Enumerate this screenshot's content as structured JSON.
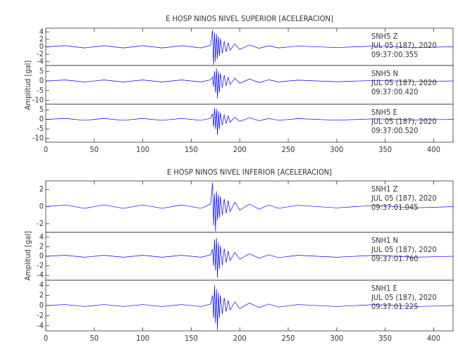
{
  "chart_data": [
    {
      "type": "line",
      "title": "E HOSP NINOS NIVEL SUPERIOR [ACELERACION]",
      "ylabel": "Amplitud [gal]",
      "xlim": [
        0,
        420
      ],
      "xticks": [
        0,
        50,
        100,
        150,
        200,
        250,
        300,
        350,
        400
      ],
      "x": [
        0,
        20,
        40,
        60,
        80,
        100,
        120,
        140,
        160,
        170,
        172,
        173,
        174,
        175,
        176,
        177,
        178,
        179,
        180,
        182,
        184,
        186,
        188,
        190,
        195,
        200,
        210,
        220,
        230,
        240,
        260,
        300,
        340,
        380,
        420
      ],
      "panels": [
        {
          "station": "SNH5   Z",
          "date": "JUL 05 (187), 2020",
          "time": "09:37:00.355",
          "color": "#0000ff",
          "ylim": [
            -5,
            5
          ],
          "yticks": [
            -4,
            -2,
            0,
            2,
            4
          ],
          "values": [
            0,
            0.3,
            -0.3,
            0.3,
            -0.3,
            0.3,
            -0.3,
            0.3,
            -0.3,
            0.4,
            4.5,
            -4.8,
            3.8,
            -4,
            3.5,
            -3.2,
            2.8,
            -2.5,
            2.2,
            -1.8,
            1.5,
            -1.3,
            1.1,
            -0.9,
            0.8,
            -0.7,
            0.5,
            -0.4,
            0.3,
            -0.3,
            0.2,
            -0.2,
            0.2,
            -0.2,
            0
          ]
        },
        {
          "station": "SNH5   N",
          "date": "JUL 05 (187), 2020",
          "time": "09:37:00.420",
          "color": "#0000ff",
          "ylim": [
            -12,
            8
          ],
          "yticks": [
            -10,
            -5,
            0,
            5
          ],
          "values": [
            0,
            0.5,
            -0.5,
            0.5,
            -0.5,
            0.5,
            -0.5,
            0.5,
            -0.5,
            0.6,
            2,
            -3,
            5,
            -6,
            6.5,
            -9,
            5,
            -6,
            4,
            -3.5,
            3,
            -2.5,
            2,
            -1.8,
            1.5,
            -1.2,
            1,
            -0.8,
            0.6,
            -0.5,
            0.4,
            -0.4,
            0.3,
            -0.3,
            0
          ]
        },
        {
          "station": "SNH5   E",
          "date": "JUL 05 (187), 2020",
          "time": "09:37:00.520",
          "color": "#0000ff",
          "ylim": [
            -12,
            8
          ],
          "yticks": [
            -10,
            -5,
            0,
            5
          ],
          "values": [
            0,
            0.5,
            -0.5,
            0.5,
            -0.5,
            0.5,
            -0.5,
            0.5,
            -0.5,
            0.6,
            3,
            -4,
            6,
            -5,
            5.5,
            -8,
            4.5,
            -5,
            3.5,
            -3,
            2.5,
            -2.2,
            1.8,
            -1.5,
            1.2,
            -1,
            0.8,
            -0.7,
            0.5,
            -0.5,
            0.4,
            -0.4,
            0.3,
            -0.3,
            0
          ]
        }
      ]
    },
    {
      "type": "line",
      "title": "E HOSP NINOS NIVEL INFERIOR [ACELERACION]",
      "ylabel": "Amplitud [gal]",
      "xlim": [
        0,
        420
      ],
      "xticks": [
        0,
        50,
        100,
        150,
        200,
        250,
        300,
        350,
        400
      ],
      "x": [
        0,
        20,
        40,
        60,
        80,
        100,
        120,
        140,
        160,
        170,
        172,
        173,
        174,
        175,
        176,
        177,
        178,
        179,
        180,
        182,
        184,
        186,
        188,
        190,
        195,
        200,
        210,
        220,
        230,
        240,
        260,
        300,
        340,
        380,
        420
      ],
      "panels": [
        {
          "station": "SNH1   Z",
          "date": "JUL 05 (187), 2020",
          "time": "09:37:01.045",
          "color": "#0000ff",
          "ylim": [
            -3,
            3
          ],
          "yticks": [
            -2,
            0,
            2
          ],
          "values": [
            0,
            0.2,
            -0.2,
            0.2,
            -0.2,
            0.2,
            -0.2,
            0.2,
            -0.2,
            0.3,
            2.8,
            -2.2,
            1.5,
            -2.9,
            1.8,
            -1.6,
            1.4,
            -1.3,
            1.2,
            -1,
            0.9,
            -0.8,
            0.7,
            -0.6,
            0.5,
            -0.4,
            0.3,
            -0.3,
            0.2,
            -0.2,
            0.15,
            -0.15,
            0.15,
            -0.15,
            0
          ]
        },
        {
          "station": "SNH1   N",
          "date": "JUL 05 (187), 2020",
          "time": "09:37:01.760",
          "color": "#0000ff",
          "ylim": [
            -5,
            5
          ],
          "yticks": [
            -4,
            -2,
            0,
            2,
            4
          ],
          "values": [
            0,
            0.2,
            -0.2,
            0.2,
            -0.2,
            0.2,
            -0.2,
            0.2,
            -0.2,
            0.3,
            1.5,
            -2,
            3.5,
            -3,
            3.8,
            -4.5,
            2.8,
            -2.6,
            2.2,
            -1.9,
            1.6,
            -1.3,
            1.1,
            -0.9,
            0.8,
            -0.6,
            0.5,
            -0.4,
            0.3,
            -0.3,
            0.2,
            -0.2,
            0.2,
            -0.2,
            0
          ]
        },
        {
          "station": "SNH1   E",
          "date": "JUL 05 (187), 2020",
          "time": "09:37:01.225",
          "color": "#0000ff",
          "ylim": [
            -5,
            5
          ],
          "yticks": [
            -4,
            -2,
            0,
            2,
            4
          ],
          "values": [
            0,
            0.2,
            -0.2,
            0.2,
            -0.2,
            0.2,
            -0.2,
            0.2,
            -0.2,
            0.3,
            2,
            -2.5,
            4,
            -3.5,
            3.2,
            -4.8,
            2.6,
            -2.4,
            2,
            -1.7,
            1.5,
            -1.2,
            1,
            -0.9,
            0.7,
            -0.6,
            0.5,
            -0.4,
            0.3,
            -0.3,
            0.2,
            -0.2,
            0.2,
            -0.2,
            0
          ]
        }
      ]
    }
  ]
}
